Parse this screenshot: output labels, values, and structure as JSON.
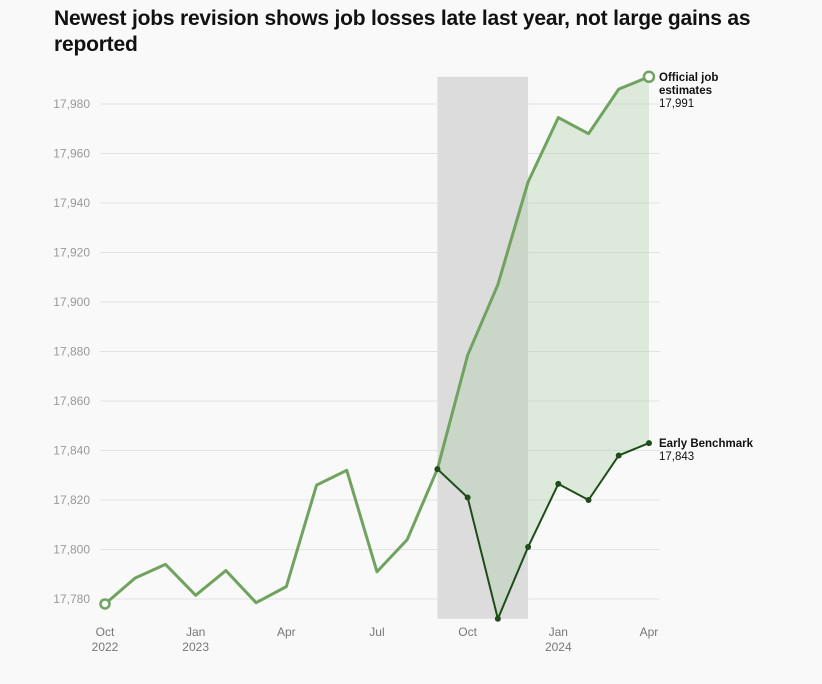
{
  "chart_data": {
    "type": "line",
    "title": "Newest jobs revision shows job losses late last year, not large gains as reported",
    "xlabel": "",
    "ylabel": "",
    "x": [
      "2022-10",
      "2022-11",
      "2022-12",
      "2023-01",
      "2023-02",
      "2023-03",
      "2023-04",
      "2023-05",
      "2023-06",
      "2023-07",
      "2023-08",
      "2023-09",
      "2023-10",
      "2023-11",
      "2023-12",
      "2024-01",
      "2024-02",
      "2024-03",
      "2024-04"
    ],
    "x_ticks": [
      {
        "x": "2022-10",
        "label": "Oct",
        "sub": "2022"
      },
      {
        "x": "2023-01",
        "label": "Jan",
        "sub": "2023"
      },
      {
        "x": "2023-04",
        "label": "Apr",
        "sub": ""
      },
      {
        "x": "2023-07",
        "label": "Jul",
        "sub": ""
      },
      {
        "x": "2023-10",
        "label": "Oct",
        "sub": ""
      },
      {
        "x": "2024-01",
        "label": "Jan",
        "sub": "2024"
      },
      {
        "x": "2024-04",
        "label": "Apr",
        "sub": ""
      }
    ],
    "y_ticks": [
      "17,780",
      "17,800",
      "17,820",
      "17,840",
      "17,860",
      "17,880",
      "17,900",
      "17,920",
      "17,940",
      "17,960",
      "17,980"
    ],
    "y_tick_values": [
      17780,
      17800,
      17820,
      17840,
      17860,
      17880,
      17900,
      17920,
      17940,
      17960,
      17980
    ],
    "ylim": [
      17772,
      17991
    ],
    "grid": true,
    "shaded_period": [
      "2023-09",
      "2023-12"
    ],
    "series": [
      {
        "name": "Official job estimates",
        "end_label": "17,991",
        "color": "#6fa35f",
        "values": [
          17778,
          17788.5,
          17794,
          17781.5,
          17791.5,
          17778.5,
          17785,
          17826,
          17832,
          17791,
          17804,
          17832.5,
          17878.5,
          17907,
          17948.5,
          17974.5,
          17968,
          17986,
          17991
        ]
      },
      {
        "name": "Early Benchmark",
        "end_label": "17,843",
        "color": "#1f4d1a",
        "values": [
          null,
          null,
          null,
          null,
          null,
          null,
          null,
          null,
          null,
          null,
          null,
          17832.5,
          17821,
          17772,
          17801,
          17826.5,
          17820,
          17838,
          17843
        ]
      }
    ],
    "gap_fill_color": "#dde9dc",
    "shade_color": "#dcdcdc"
  }
}
